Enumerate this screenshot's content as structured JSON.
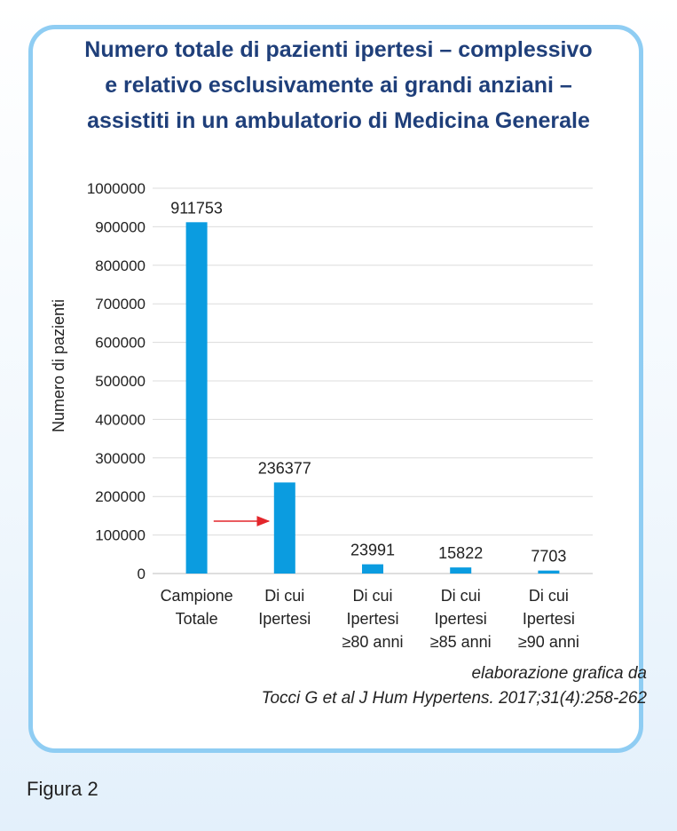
{
  "title_lines": [
    "Numero totale di pazienti ipertesi – complessivo",
    "e relativo esclusivamente ai grandi anziani –",
    "assistiti in un ambulatorio di Medicina Generale"
  ],
  "chart_data": {
    "type": "bar",
    "title": "Numero totale di pazienti ipertesi – complessivo e relativo esclusivamente ai grandi anziani – assistiti in un ambulatorio di Medicina Generale",
    "categories": [
      [
        "Campione",
        "Totale"
      ],
      [
        "Di cui",
        "Ipertesi"
      ],
      [
        "Di cui",
        "Ipertesi",
        "≥80 anni"
      ],
      [
        "Di cui",
        "Ipertesi",
        "≥85 anni"
      ],
      [
        "Di cui",
        "Ipertesi",
        "≥90 anni"
      ]
    ],
    "values": [
      911753,
      236377,
      23991,
      15822,
      7703
    ],
    "data_labels": [
      "911753",
      "236377",
      "23991",
      "15822",
      "7703"
    ],
    "xlabel": "",
    "ylabel": "Numero di pazienti",
    "ylim": [
      0,
      1000000
    ],
    "yticks": [
      0,
      100000,
      200000,
      300000,
      400000,
      500000,
      600000,
      700000,
      800000,
      900000,
      1000000
    ],
    "ytick_labels": [
      "0",
      "100000",
      "200000",
      "300000",
      "400000",
      "500000",
      "600000",
      "700000",
      "800000",
      "900000",
      "1000000"
    ],
    "grid": true,
    "bar_color": "#0b9ce0",
    "annotation": {
      "type": "arrow",
      "points_to_category": 1,
      "color": "#e3262b"
    }
  },
  "credit_lines": [
    "elaborazione grafica da",
    "Tocci G et al  J Hum Hypertens. 2017;31(4):258-262"
  ],
  "figure_label": "Figura 2"
}
